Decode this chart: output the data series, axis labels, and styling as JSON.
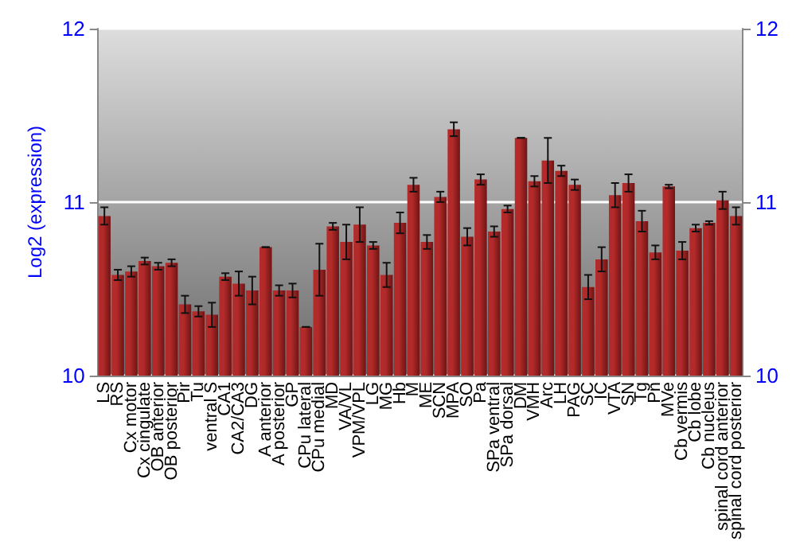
{
  "chart_data": {
    "type": "bar",
    "ylabel": "Log2 (expression)",
    "categories": [
      "LS",
      "RS",
      "Cx motor",
      "Cx cingulate",
      "OB anterior",
      "OB posterior",
      "Pir",
      "Tu",
      "ventral S",
      "CA1",
      "CA2/CA3",
      "DG",
      "A anterior",
      "A posterior",
      "GP",
      "CPu lateral",
      "CPu medial",
      "MD",
      "VA/VL",
      "VPM/VPL",
      "LG",
      "MG",
      "Hb",
      "M",
      "ME",
      "SCN",
      "MPA",
      "SO",
      "Pa",
      "SPa ventral",
      "SPa dorsal",
      "DM",
      "VMH",
      "Arc",
      "LH",
      "PAG",
      "SC",
      "IC",
      "VTA",
      "SN",
      "Tg",
      "Pn",
      "MVe",
      "Cb vermis",
      "Cb lobe",
      "Cb nucleus",
      "spinal cord anterior",
      "spinal cord posterior"
    ],
    "values": [
      10.92,
      10.58,
      10.6,
      10.66,
      10.63,
      10.65,
      10.41,
      10.37,
      10.35,
      10.57,
      10.53,
      10.49,
      10.74,
      10.49,
      10.49,
      10.28,
      10.61,
      10.86,
      10.77,
      10.87,
      10.75,
      10.58,
      10.88,
      11.1,
      10.77,
      11.03,
      11.42,
      10.8,
      11.13,
      10.83,
      10.96,
      11.37,
      11.12,
      11.24,
      11.18,
      11.1,
      10.51,
      10.67,
      11.04,
      11.11,
      10.89,
      10.71,
      11.09,
      10.72,
      10.85,
      10.88,
      11.01,
      10.92
    ],
    "errors": [
      0.05,
      0.03,
      0.03,
      0.02,
      0.02,
      0.02,
      0.05,
      0.03,
      0.07,
      0.02,
      0.07,
      0.08,
      0,
      0.03,
      0.04,
      0,
      0.15,
      0.02,
      0.1,
      0.1,
      0.02,
      0.07,
      0.06,
      0.04,
      0.04,
      0.03,
      0.04,
      0.05,
      0.03,
      0.03,
      0.02,
      0,
      0.03,
      0.13,
      0.03,
      0.03,
      0.07,
      0.07,
      0.07,
      0.05,
      0.06,
      0.04,
      0.01,
      0.05,
      0.02,
      0.01,
      0.05,
      0.05
    ],
    "color": "#b22a2a",
    "ylim": [
      10,
      12
    ],
    "yticks": [
      10,
      11,
      12
    ],
    "y2lim": [
      10,
      12
    ],
    "y2ticks": [
      10,
      11,
      12
    ],
    "grid": "y"
  }
}
